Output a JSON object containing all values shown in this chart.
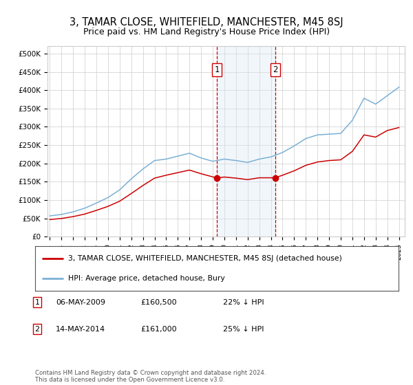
{
  "title": "3, TAMAR CLOSE, WHITEFIELD, MANCHESTER, M45 8SJ",
  "subtitle": "Price paid vs. HM Land Registry's House Price Index (HPI)",
  "ylabel_ticks": [
    "£0",
    "£50K",
    "£100K",
    "£150K",
    "£200K",
    "£250K",
    "£300K",
    "£350K",
    "£400K",
    "£450K",
    "£500K"
  ],
  "ytick_values": [
    0,
    50000,
    100000,
    150000,
    200000,
    250000,
    300000,
    350000,
    400000,
    450000,
    500000
  ],
  "ylim": [
    0,
    520000
  ],
  "xlim_start": 1994.8,
  "xlim_end": 2025.5,
  "transaction1": {
    "date_num": 2009.35,
    "price": 160500,
    "label": "1"
  },
  "transaction2": {
    "date_num": 2014.37,
    "price": 161000,
    "label": "2"
  },
  "legend_house": "3, TAMAR CLOSE, WHITEFIELD, MANCHESTER, M45 8SJ (detached house)",
  "legend_hpi": "HPI: Average price, detached house, Bury",
  "footnote": "Contains HM Land Registry data © Crown copyright and database right 2024.\nThis data is licensed under the Open Government Licence v3.0.",
  "house_color": "#cc0000",
  "hpi_color": "#7ab0d4",
  "shade_color": "#d8e8f5",
  "dashed_color": "#cc0000",
  "background_color": "#ffffff",
  "grid_color": "#cccccc",
  "years_hpi": [
    1995,
    1996,
    1997,
    1998,
    1999,
    2000,
    2001,
    2002,
    2003,
    2004,
    2005,
    2006,
    2007,
    2008,
    2009,
    2010,
    2011,
    2012,
    2013,
    2014,
    2015,
    2016,
    2017,
    2018,
    2019,
    2020,
    2021,
    2022,
    2023,
    2024,
    2025
  ],
  "hpi_values": [
    57000,
    61000,
    68000,
    78000,
    92000,
    107000,
    128000,
    158000,
    185000,
    208000,
    212000,
    220000,
    228000,
    215000,
    206000,
    212000,
    208000,
    203000,
    212000,
    218000,
    230000,
    248000,
    268000,
    278000,
    280000,
    282000,
    318000,
    378000,
    362000,
    385000,
    408000
  ],
  "years_prop": [
    1995,
    1996,
    1997,
    1998,
    1999,
    2000,
    2001,
    2002,
    2003,
    2004,
    2005,
    2006,
    2007,
    2008,
    2009.35,
    2010,
    2011,
    2012,
    2013,
    2014.37,
    2015,
    2016,
    2017,
    2018,
    2019,
    2020,
    2021,
    2022,
    2023,
    2024,
    2025
  ],
  "prop_values": [
    47000,
    50000,
    55000,
    62000,
    72000,
    83000,
    97000,
    118000,
    140000,
    160000,
    168000,
    175000,
    182000,
    172000,
    160500,
    163000,
    160000,
    156000,
    161000,
    161000,
    168000,
    180000,
    195000,
    204000,
    208000,
    210000,
    233000,
    278000,
    272000,
    290000,
    298000
  ]
}
